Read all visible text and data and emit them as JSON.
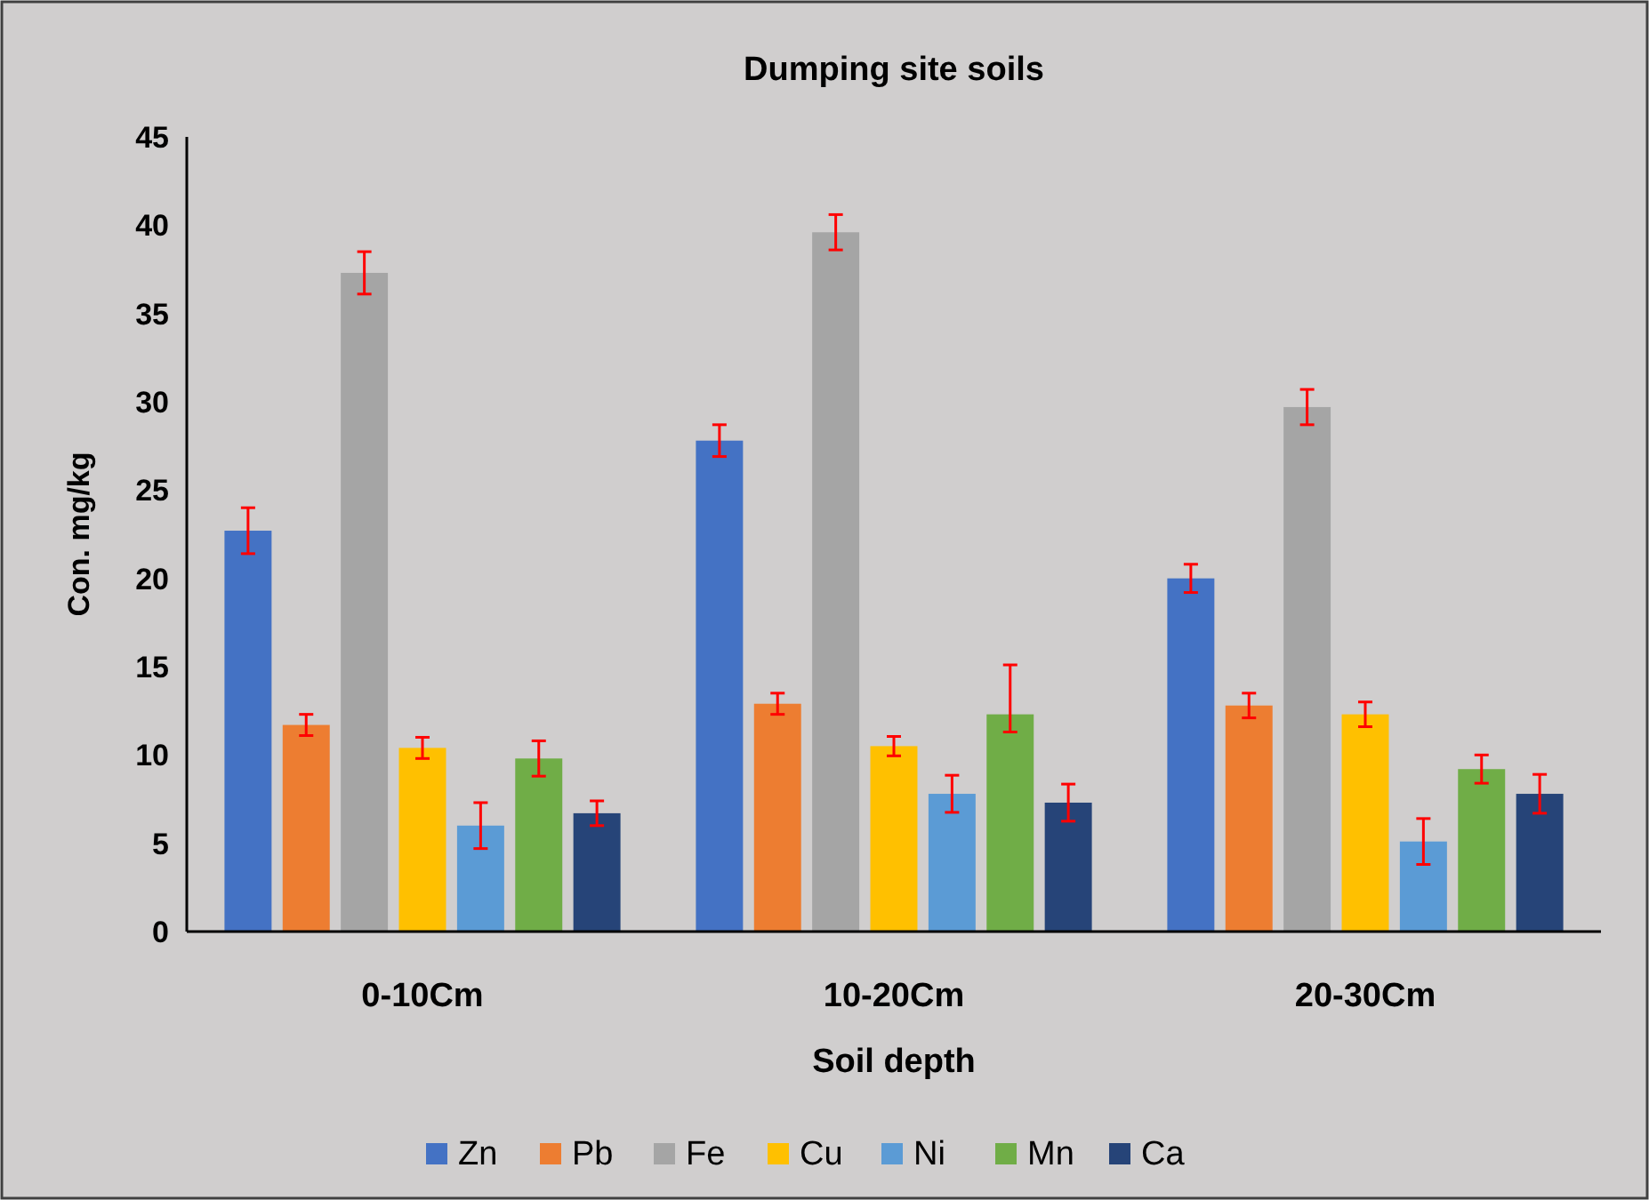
{
  "chart_data": {
    "type": "bar",
    "title": "Dumping site soils",
    "xlabel": "Soil depth",
    "ylabel": "Con. mg/kg",
    "categories": [
      "0-10Cm",
      "10-20Cm",
      "20-30Cm"
    ],
    "series": [
      {
        "name": "Zn",
        "color": "#4472c4",
        "values": [
          22.7,
          27.8,
          20.0
        ],
        "errors": [
          1.3,
          0.9,
          0.8
        ]
      },
      {
        "name": "Pb",
        "color": "#ed7d31",
        "values": [
          11.7,
          12.9,
          12.8
        ],
        "errors": [
          0.6,
          0.6,
          0.7
        ]
      },
      {
        "name": "Fe",
        "color": "#a5a5a5",
        "values": [
          37.3,
          39.6,
          29.7
        ],
        "errors": [
          1.2,
          1.0,
          1.0
        ]
      },
      {
        "name": "Cu",
        "color": "#ffc000",
        "values": [
          10.4,
          10.5,
          12.3
        ],
        "errors": [
          0.6,
          0.55,
          0.7
        ]
      },
      {
        "name": "Ni",
        "color": "#5b9bd5",
        "values": [
          6.0,
          7.8,
          5.1
        ],
        "errors": [
          1.3,
          1.05,
          1.3
        ]
      },
      {
        "name": "Mn",
        "color": "#70ad47",
        "values": [
          9.8,
          12.3,
          9.2
        ],
        "errors": [
          1.0,
          [
            11.3,
            15.1
          ],
          0.8
        ]
      },
      {
        "name": "Ca",
        "color": "#264478",
        "values": [
          6.7,
          7.3,
          7.8
        ],
        "errors": [
          0.7,
          1.05,
          1.1
        ]
      }
    ],
    "ylim": [
      0,
      45
    ],
    "yticks": [
      0,
      5,
      10,
      15,
      20,
      25,
      30,
      35,
      40,
      45
    ],
    "grid": false,
    "legend": "bottom"
  }
}
